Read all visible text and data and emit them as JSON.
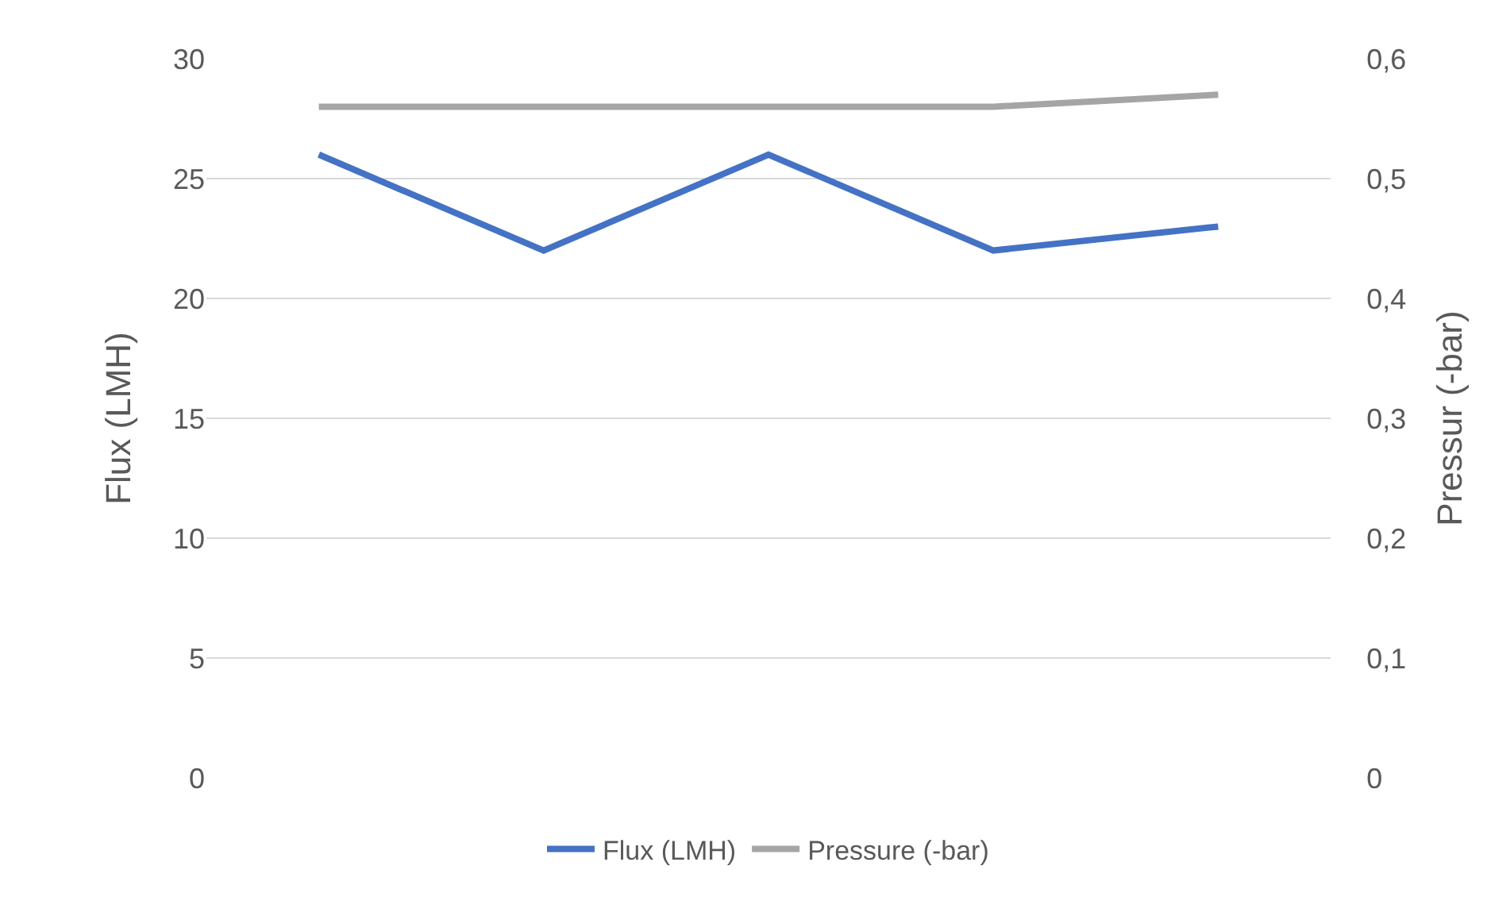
{
  "chart_data": {
    "type": "line",
    "categories": [
      null,
      null,
      null,
      null,
      null
    ],
    "series": [
      {
        "name": "Flux (LMH)",
        "color": "#4472c4",
        "values": [
          26,
          22,
          26,
          22,
          23
        ]
      },
      {
        "name": "Pressure (-bar)",
        "color": "#a5a5a5",
        "values": [
          0.56,
          0.56,
          0.56,
          0.56,
          0.57
        ],
        "axis": "y2"
      }
    ],
    "ylabel": "Flux (LMH)",
    "y2label": "Pressur (-bar)",
    "ylim": [
      0,
      30
    ],
    "yticks": [
      0,
      5,
      10,
      15,
      20,
      25,
      30
    ],
    "y2lim": [
      0,
      0.6
    ],
    "y2ticks": [
      0,
      {
        "value": 0.1,
        "label": "0,1"
      },
      {
        "value": 0.2,
        "label": "0,2"
      },
      {
        "value": 0.3,
        "label": "0,3"
      },
      {
        "value": 0.4,
        "label": "0,4"
      },
      {
        "value": 0.5,
        "label": "0,5"
      },
      {
        "value": 0.6,
        "label": "0,6"
      }
    ],
    "grid": "y",
    "legend": "bottom",
    "marker": "none",
    "line_style": "solid"
  }
}
